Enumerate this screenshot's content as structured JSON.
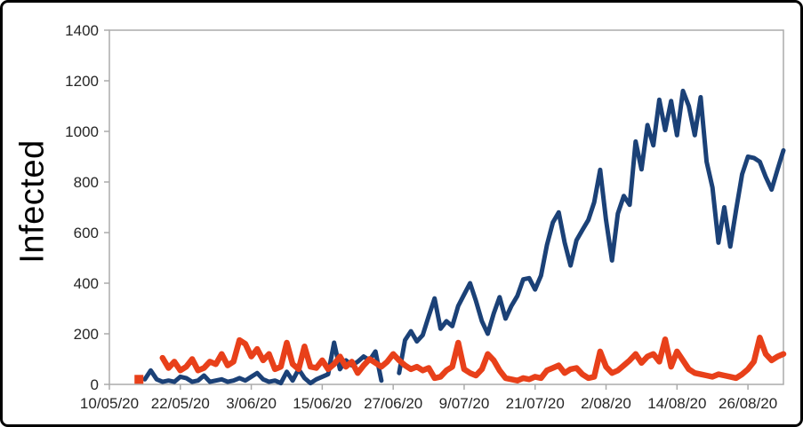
{
  "chart_data": {
    "type": "line",
    "title": "",
    "ylabel": "Infected",
    "xlabel": "",
    "ylim": [
      0,
      1400
    ],
    "y_ticks": [
      0,
      200,
      400,
      600,
      800,
      1000,
      1200,
      1400
    ],
    "x_ticks": [
      {
        "day": 0,
        "label": "10/05/20"
      },
      {
        "day": 12,
        "label": "22/05/20"
      },
      {
        "day": 24,
        "label": "3/06/20"
      },
      {
        "day": 36,
        "label": "15/06/20"
      },
      {
        "day": 48,
        "label": "27/06/20"
      },
      {
        "day": 60,
        "label": "9/07/20"
      },
      {
        "day": 72,
        "label": "21/07/20"
      },
      {
        "day": 84,
        "label": "2/08/20"
      },
      {
        "day": 96,
        "label": "14/08/20"
      },
      {
        "day": 108,
        "label": "26/08/20"
      }
    ],
    "x_span_days": 114,
    "grid": false,
    "legend": "none",
    "axis_color": "#ababab",
    "tick_label_color": "#262626",
    "series": [
      {
        "name": "blue-series",
        "color": "#1b4177",
        "stroke_width": 5,
        "segments": [
          {
            "start_day": 6,
            "values": [
              20,
              55,
              20,
              10,
              15,
              10,
              30,
              25,
              10,
              15,
              35,
              10,
              15,
              20,
              10,
              15,
              25,
              15,
              30,
              45,
              20,
              10,
              15,
              5,
              50,
              15,
              60,
              25,
              5,
              20,
              30,
              40,
              165,
              60,
              95,
              75,
              90,
              110,
              95,
              130,
              15
            ]
          },
          {
            "start_day": 49,
            "values": [
              45,
              175,
              210,
              170,
              195,
              270,
              340,
              220,
              250,
              230,
              310,
              355,
              400,
              330,
              250,
              200,
              280,
              345,
              260,
              310,
              350,
              415,
              420,
              375,
              430,
              550,
              640,
              680,
              560,
              470,
              570,
              610,
              650,
              720,
              848,
              650,
              490,
              675,
              745,
              710,
              960,
              850,
              1025,
              945,
              1125,
              1005,
              1120,
              985,
              1160,
              1100,
              985,
              1135,
              880,
              778,
              560,
              700,
              545,
              690,
              830,
              900,
              895,
              880,
              820,
              770,
              850,
              925
            ]
          }
        ]
      },
      {
        "name": "red-series",
        "color": "#e8401a",
        "stroke_width": 6.5,
        "segments": [
          {
            "start_day": 5,
            "values": [
              20
            ]
          },
          {
            "start_day": 9,
            "values": [
              105,
              65,
              90,
              55,
              70,
              100,
              55,
              65,
              90,
              80,
              120,
              75,
              90,
              175,
              160,
              110,
              140,
              95,
              120,
              60,
              70,
              165,
              80,
              60,
              150,
              70,
              65,
              95,
              60,
              80,
              110,
              70,
              90,
              45,
              75,
              100,
              85,
              70,
              90,
              120,
              95,
              75,
              60,
              70,
              55,
              65,
              25,
              30,
              55,
              70,
              165,
              60,
              45,
              35,
              60,
              120,
              95,
              55,
              25,
              20,
              15,
              25,
              20,
              30,
              25,
              55,
              65,
              75,
              45,
              60,
              65,
              40,
              25,
              30,
              130,
              70,
              45,
              55,
              75,
              95,
              120,
              85,
              110,
              120,
              90,
              178,
              70,
              130,
              95,
              60,
              45,
              40,
              35,
              30,
              40,
              35,
              30,
              25,
              40,
              60,
              90,
              185,
              120,
              95,
              110,
              120
            ]
          }
        ]
      }
    ]
  }
}
